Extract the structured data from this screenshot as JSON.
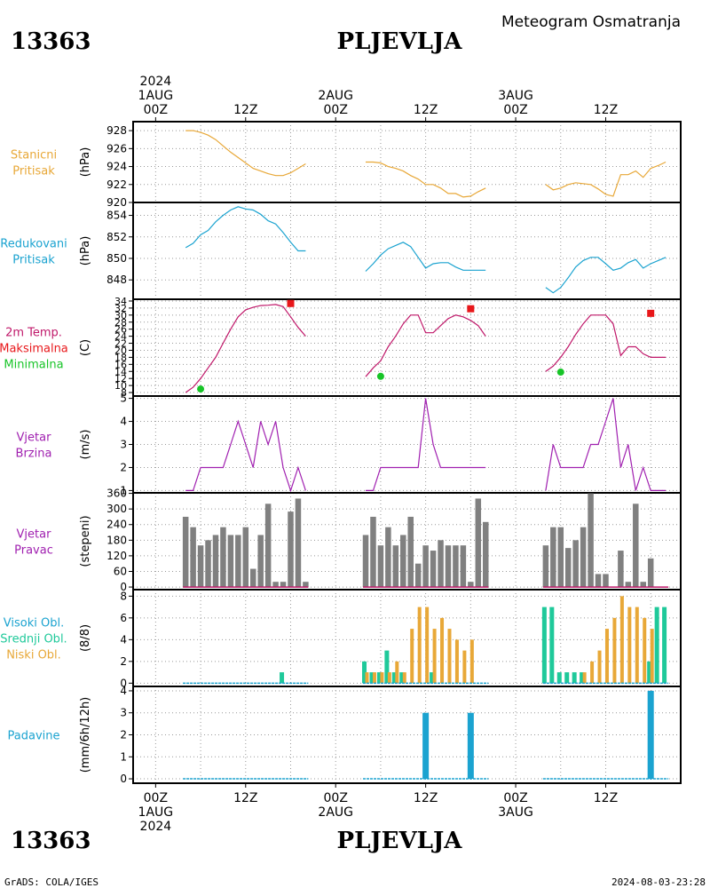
{
  "header": {
    "station_id": "13363",
    "station_name": "PLJEVLJA",
    "subtitle": "Meteogram Osmatranja"
  },
  "footer": {
    "credit": "GrADS: COLA/IGES",
    "timestamp": "2024-08-03-23:28"
  },
  "time_axis": {
    "top_labels": [
      {
        "hour": 0,
        "lines": [
          "2024",
          "1AUG",
          "00Z"
        ]
      },
      {
        "hour": 12,
        "lines": [
          "12Z"
        ]
      },
      {
        "hour": 24,
        "lines": [
          "2AUG",
          "00Z"
        ]
      },
      {
        "hour": 36,
        "lines": [
          "12Z"
        ]
      },
      {
        "hour": 48,
        "lines": [
          "3AUG",
          "00Z"
        ]
      },
      {
        "hour": 60,
        "lines": [
          "12Z"
        ]
      }
    ],
    "bottom_labels": [
      {
        "hour": 0,
        "lines": [
          "00Z",
          "1AUG",
          "2024"
        ]
      },
      {
        "hour": 12,
        "lines": [
          "12Z"
        ]
      },
      {
        "hour": 24,
        "lines": [
          "00Z",
          "2AUG"
        ]
      },
      {
        "hour": 36,
        "lines": [
          "12Z"
        ]
      },
      {
        "hour": 48,
        "lines": [
          "00Z",
          "3AUG"
        ]
      },
      {
        "hour": 60,
        "lines": [
          "12Z"
        ]
      }
    ],
    "range_hours": [
      -3,
      70
    ]
  },
  "panels": [
    {
      "id": "stanicni",
      "labels": [
        "Stanicni",
        "Pritisak"
      ],
      "label_colors": [
        "#e8a838",
        "#e8a838"
      ],
      "unit": "(hPa)",
      "ylim": [
        920,
        929
      ],
      "ticks": [
        920,
        922,
        924,
        926,
        928
      ]
    },
    {
      "id": "redukovani",
      "labels": [
        "Redukovani",
        "Pritisak"
      ],
      "label_colors": [
        "#1ba3d0",
        "#1ba3d0"
      ],
      "unit": "(hPa)",
      "ylim": [
        846.2,
        855.2
      ],
      "ticks": [
        848,
        850,
        852,
        854
      ]
    },
    {
      "id": "temp",
      "labels": [
        "2m Temp.",
        "Maksimalna",
        "Minimalna"
      ],
      "label_colors": [
        "#c0186a",
        "#e8171a",
        "#17c427"
      ],
      "unit": "(C)",
      "ylim": [
        7,
        34.5
      ],
      "ticks": [
        8,
        10,
        12,
        14,
        16,
        18,
        20,
        22,
        24,
        26,
        28,
        30,
        32,
        34
      ]
    },
    {
      "id": "brzina",
      "labels": [
        "Vjetar",
        "Brzina"
      ],
      "label_colors": [
        "#a020b0",
        "#a020b0"
      ],
      "unit": "(m/s)",
      "ylim": [
        0.9,
        5.1
      ],
      "ticks": [
        1,
        2,
        3,
        4,
        5
      ]
    },
    {
      "id": "pravac",
      "labels": [
        "Vjetar",
        "Pravac"
      ],
      "label_colors": [
        "#a020b0",
        "#a020b0"
      ],
      "unit": "(stepeni)",
      "ylim": [
        -10,
        362
      ],
      "ticks": [
        0,
        60,
        120,
        180,
        240,
        300,
        360
      ]
    },
    {
      "id": "oblaci",
      "labels": [
        "Visoki Obl.",
        "Srednji Obl.",
        "Niski Obl."
      ],
      "label_colors": [
        "#1ba3d0",
        "#1fc99a",
        "#e8a838"
      ],
      "unit": "(8/8)",
      "ylim": [
        -0.3,
        8.6
      ],
      "ticks": [
        0,
        2,
        4,
        6,
        8
      ]
    },
    {
      "id": "padavine",
      "labels": [
        "Padavine"
      ],
      "label_colors": [
        "#1ba3d0"
      ],
      "unit": "(mm/6h/12h)",
      "ylim": [
        -0.2,
        4.2
      ],
      "ticks": [
        0,
        1,
        2,
        3,
        4
      ]
    }
  ],
  "chart_data": {
    "type": "line",
    "x_unit": "hours since 2024-08-01 00Z",
    "stanicni_pritisak": {
      "unit": "hPa",
      "color": "#e8a838",
      "segments": [
        {
          "x": [
            4,
            5,
            6,
            7,
            8,
            9,
            10,
            11,
            12,
            13,
            14,
            15,
            16,
            17,
            18,
            19,
            20
          ],
          "y": [
            928,
            928,
            927.8,
            927.5,
            927,
            926.3,
            925.6,
            925,
            924.4,
            923.8,
            923.5,
            923.2,
            923,
            923,
            923.3,
            923.8,
            924.3
          ]
        },
        {
          "x": [
            28,
            29,
            30,
            31,
            32,
            33,
            34,
            35,
            36,
            37,
            38,
            39,
            40,
            41,
            42,
            43,
            44
          ],
          "y": [
            924.5,
            924.5,
            924.4,
            924,
            923.8,
            923.5,
            923,
            922.6,
            922,
            922,
            921.6,
            921,
            921,
            920.6,
            920.7,
            921.2,
            921.6
          ]
        },
        {
          "x": [
            52,
            53,
            54,
            55,
            56,
            57,
            58,
            59,
            60,
            61,
            62,
            63,
            64,
            65,
            66,
            67,
            68
          ],
          "y": [
            922,
            921.4,
            921.6,
            922,
            922.2,
            922.1,
            922,
            921.5,
            920.9,
            920.7,
            923.1,
            923.1,
            923.5,
            922.8,
            923.8,
            924.1,
            924.5
          ]
        }
      ]
    },
    "redukovani_pritisak": {
      "unit": "hPa",
      "color": "#1ba3d0",
      "segments": [
        {
          "x": [
            4,
            5,
            6,
            7,
            8,
            9,
            10,
            11,
            12,
            13,
            14,
            15,
            16,
            17,
            18,
            19,
            20
          ],
          "y": [
            851,
            851.4,
            852.2,
            852.6,
            853.4,
            854,
            854.5,
            854.8,
            854.6,
            854.5,
            854.1,
            853.5,
            853.2,
            852.4,
            851.5,
            850.7,
            850.7
          ]
        },
        {
          "x": [
            28,
            29,
            30,
            31,
            32,
            33,
            34,
            35,
            36,
            37,
            38,
            39,
            40,
            41,
            42,
            43,
            44
          ],
          "y": [
            848.8,
            849.5,
            850.3,
            850.9,
            851.2,
            851.5,
            851.1,
            850.1,
            849.1,
            849.5,
            849.6,
            849.6,
            849.2,
            848.9,
            848.9,
            848.9,
            848.9
          ]
        },
        {
          "x": [
            52,
            53,
            54,
            55,
            56,
            57,
            58,
            59,
            60,
            61,
            62,
            63,
            64,
            65,
            66,
            67,
            68
          ],
          "y": [
            847.3,
            846.8,
            847.3,
            848.2,
            849.2,
            849.8,
            850.1,
            850.1,
            849.5,
            848.9,
            849.1,
            849.6,
            849.9,
            849.1,
            849.5,
            849.8,
            850.1
          ]
        }
      ]
    },
    "temperatura_2m": {
      "unit": "C",
      "color": "#c0186a",
      "segments": [
        {
          "x": [
            4,
            5,
            6,
            7,
            8,
            9,
            10,
            11,
            12,
            13,
            14,
            15,
            16,
            17,
            18,
            19,
            20
          ],
          "y": [
            8,
            9.5,
            12,
            15,
            18,
            22,
            26,
            29.5,
            31.5,
            32.2,
            32.7,
            32.8,
            33,
            32.4,
            29.5,
            26.5,
            24
          ]
        },
        {
          "x": [
            28,
            29,
            30,
            31,
            32,
            33,
            34,
            35,
            36,
            37,
            38,
            39,
            40,
            41,
            42,
            43,
            44
          ],
          "y": [
            12.5,
            15,
            17,
            21,
            24,
            27.5,
            30,
            30,
            25,
            25,
            27,
            29,
            30,
            29.5,
            28.5,
            27,
            24
          ]
        },
        {
          "x": [
            52,
            53,
            54,
            55,
            56,
            57,
            58,
            59,
            60,
            61,
            62,
            63,
            64,
            65,
            66,
            67,
            68
          ],
          "y": [
            14,
            15.5,
            18,
            21,
            24.5,
            27.5,
            30,
            30,
            30,
            27.5,
            18.5,
            21,
            21,
            19,
            18,
            18,
            18
          ]
        }
      ]
    },
    "temperatura_maksimalna": {
      "unit": "C",
      "color": "#e8171a",
      "marker": "square",
      "points": [
        {
          "x": 18,
          "y": 33.3
        },
        {
          "x": 42,
          "y": 31.8
        },
        {
          "x": 66,
          "y": 30.5
        }
      ]
    },
    "temperatura_minimalna": {
      "unit": "C",
      "color": "#17c427",
      "marker": "circle",
      "points": [
        {
          "x": 6,
          "y": 9
        },
        {
          "x": 30,
          "y": 12.6
        },
        {
          "x": 54,
          "y": 13.8
        }
      ]
    },
    "vjetar_brzina": {
      "unit": "m/s",
      "color": "#a020b0",
      "segments": [
        {
          "x": [
            4,
            5,
            6,
            7,
            8,
            9,
            10,
            11,
            12,
            13,
            14,
            15,
            16,
            17,
            18,
            19,
            20
          ],
          "y": [
            1,
            1,
            2,
            2,
            2,
            2,
            3,
            4,
            3,
            2,
            4,
            3,
            4,
            2,
            1,
            2,
            1
          ]
        },
        {
          "x": [
            28,
            29,
            30,
            31,
            32,
            33,
            34,
            35,
            36,
            37,
            38,
            39,
            40,
            41,
            42,
            43,
            44
          ],
          "y": [
            1,
            1,
            2,
            2,
            2,
            2,
            2,
            2,
            5,
            3,
            2,
            2,
            2,
            2,
            2,
            2,
            2
          ]
        },
        {
          "x": [
            52,
            53,
            54,
            55,
            56,
            57,
            58,
            59,
            60,
            61,
            62,
            63,
            64,
            65,
            66,
            67,
            68
          ],
          "y": [
            1,
            3,
            2,
            2,
            2,
            2,
            3,
            3,
            4,
            5,
            2,
            3,
            1,
            2,
            1,
            1,
            1
          ]
        }
      ]
    },
    "vjetar_pravac": {
      "unit": "stepeni",
      "color": "#808080",
      "x": [
        4,
        5,
        6,
        7,
        8,
        9,
        10,
        11,
        12,
        13,
        14,
        15,
        16,
        17,
        18,
        19,
        20,
        28,
        29,
        30,
        31,
        32,
        33,
        34,
        35,
        36,
        37,
        38,
        39,
        40,
        41,
        42,
        43,
        44,
        52,
        53,
        54,
        55,
        56,
        57,
        58,
        59,
        60,
        61,
        62,
        63,
        64,
        65,
        66,
        67,
        68
      ],
      "values": [
        270,
        230,
        160,
        180,
        200,
        230,
        200,
        200,
        230,
        70,
        200,
        320,
        20,
        20,
        290,
        340,
        20,
        200,
        270,
        160,
        230,
        160,
        200,
        270,
        90,
        160,
        140,
        180,
        160,
        160,
        160,
        20,
        340,
        250,
        160,
        230,
        230,
        150,
        180,
        230,
        360,
        50,
        50,
        0,
        140,
        20,
        320,
        20,
        110,
        0,
        0
      ]
    },
    "oblaci": {
      "unit": "8/8",
      "visoki": {
        "color": "#1ba3d0",
        "x": [
          4,
          5,
          6,
          7,
          8,
          9,
          10,
          11,
          12,
          13,
          14,
          15,
          16,
          17,
          18,
          19,
          20,
          28,
          29,
          30,
          31,
          32,
          33,
          34,
          35,
          36,
          37,
          38,
          39,
          40,
          41,
          42,
          43,
          44,
          52,
          53,
          54,
          55,
          56,
          57,
          58,
          59,
          60,
          61,
          62,
          63,
          64,
          65,
          66,
          67,
          68
        ],
        "values": [
          0,
          0,
          0,
          0,
          0,
          0,
          0,
          0,
          0,
          0,
          0,
          0,
          0,
          0,
          0,
          0,
          0,
          0,
          0,
          0,
          0,
          0,
          0,
          0,
          0,
          0,
          0,
          0,
          0,
          0,
          0,
          0,
          0,
          0,
          0,
          0,
          0,
          0,
          0,
          0,
          0,
          0,
          0,
          0,
          0,
          0,
          0,
          0,
          0,
          0,
          0
        ]
      },
      "srednji": {
        "color": "#1fc99a",
        "x": [
          4,
          5,
          6,
          7,
          8,
          9,
          10,
          11,
          12,
          13,
          14,
          15,
          16,
          17,
          18,
          19,
          20,
          28,
          29,
          30,
          31,
          32,
          33,
          34,
          35,
          36,
          37,
          38,
          39,
          40,
          41,
          42,
          43,
          44,
          52,
          53,
          54,
          55,
          56,
          57,
          58,
          59,
          60,
          61,
          62,
          63,
          64,
          65,
          66,
          67,
          68
        ],
        "values": [
          0,
          0,
          0,
          0,
          0,
          0,
          0,
          0,
          0,
          0,
          0,
          0,
          0,
          1,
          0,
          0,
          0,
          2,
          1,
          1,
          3,
          1,
          1,
          0,
          0,
          0,
          1,
          0,
          0,
          0,
          0,
          0,
          0,
          0,
          7,
          7,
          1,
          1,
          1,
          1,
          0,
          0,
          0,
          0,
          0,
          0,
          0,
          0,
          2,
          7,
          7
        ]
      },
      "niski": {
        "color": "#e8a838",
        "x": [
          4,
          5,
          6,
          7,
          8,
          9,
          10,
          11,
          12,
          13,
          14,
          15,
          16,
          17,
          18,
          19,
          20,
          28,
          29,
          30,
          31,
          32,
          33,
          34,
          35,
          36,
          37,
          38,
          39,
          40,
          41,
          42,
          43,
          44,
          52,
          53,
          54,
          55,
          56,
          57,
          58,
          59,
          60,
          61,
          62,
          63,
          64,
          65,
          66,
          67,
          68
        ],
        "values": [
          0,
          0,
          0,
          0,
          0,
          0,
          0,
          0,
          0,
          0,
          0,
          0,
          0,
          0,
          0,
          0,
          0,
          1,
          1,
          1,
          1,
          2,
          1,
          5,
          7,
          7,
          5,
          6,
          5,
          4,
          3,
          4,
          0,
          0,
          0,
          0,
          0,
          0,
          0,
          1,
          2,
          3,
          5,
          6,
          8,
          7,
          7,
          6,
          5,
          0,
          0
        ]
      }
    },
    "padavine": {
      "unit": "mm/6h/12h",
      "color": "#1ba3d0",
      "x": [
        36,
        42,
        66
      ],
      "values": [
        3,
        3,
        4
      ]
    }
  }
}
